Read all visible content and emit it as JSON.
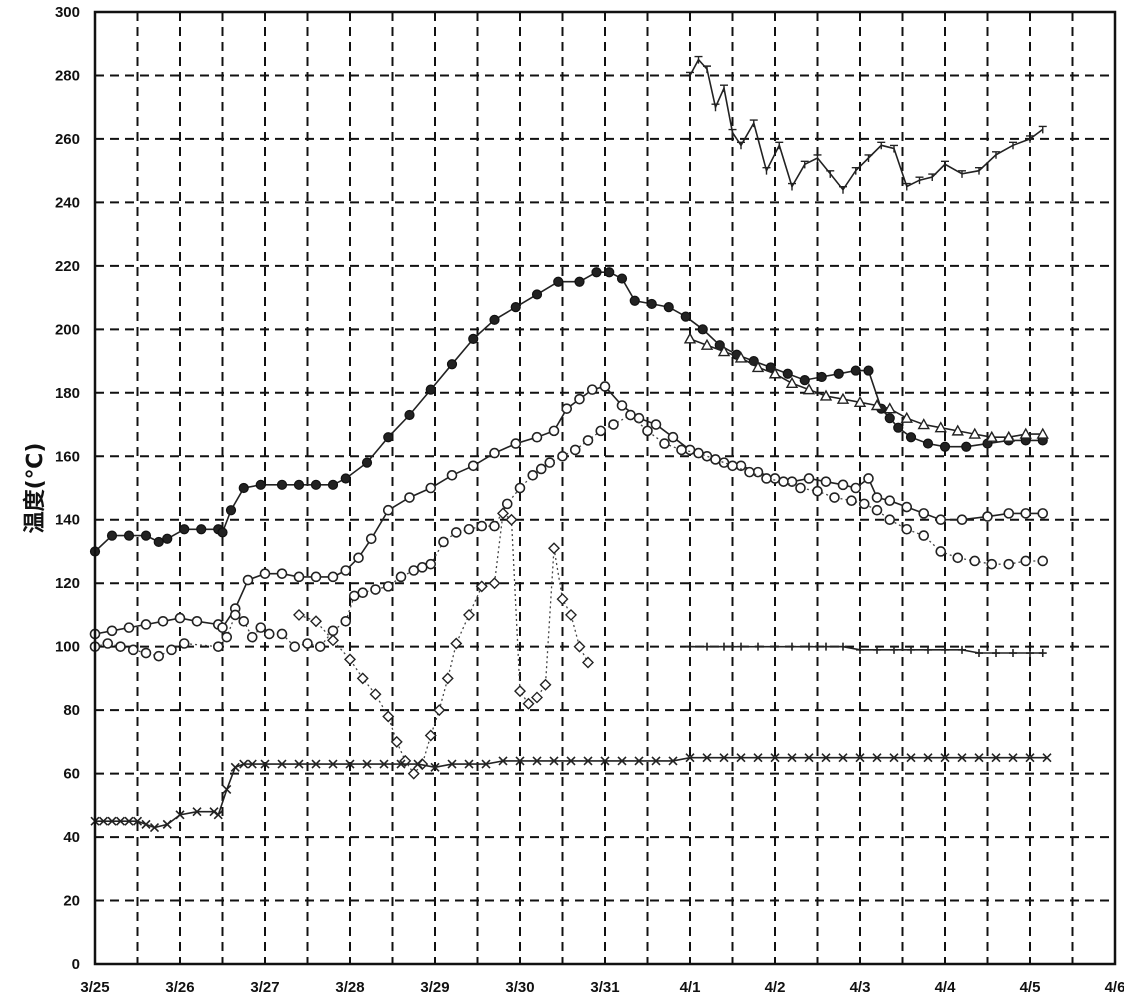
{
  "chart_data": {
    "type": "line",
    "title": "",
    "xlabel": "",
    "ylabel": "温度(℃)",
    "ylim": [
      0,
      300
    ],
    "yticks": [
      "0",
      "20",
      "40",
      "60",
      "80",
      "100",
      "120",
      "140",
      "160",
      "180",
      "200",
      "220",
      "240",
      "260",
      "280",
      "300"
    ],
    "xticks": [
      "3/25",
      "3/26",
      "3/27",
      "3/28",
      "3/29",
      "3/30",
      "3/31",
      "4/1",
      "4/2",
      "4/3",
      "4/4",
      "4/5",
      "4/6"
    ],
    "grid": true,
    "series": [
      {
        "marker": "filled-circle",
        "style": "solid",
        "x": [
          0,
          0.2,
          0.4,
          0.6,
          0.75,
          0.85,
          1.05,
          1.25,
          1.45,
          1.5,
          1.6,
          1.75,
          1.95,
          2.2,
          2.4,
          2.6,
          2.8,
          2.95,
          3.2,
          3.45,
          3.7,
          3.95,
          4.2,
          4.45,
          4.7,
          4.95,
          5.2,
          5.45,
          5.7,
          5.9,
          6.05,
          6.2,
          6.35,
          6.55,
          6.75,
          6.95,
          7.15,
          7.35,
          7.55,
          7.75,
          7.95,
          8.15,
          8.35,
          8.55,
          8.75,
          8.95,
          9.1,
          9.25,
          9.35,
          9.45,
          9.6,
          9.8,
          10,
          10.25,
          10.5,
          10.75,
          10.95,
          11.15
        ],
        "y": [
          130,
          135,
          135,
          135,
          133,
          134,
          137,
          137,
          137,
          136,
          143,
          150,
          151,
          151,
          151,
          151,
          151,
          153,
          158,
          166,
          173,
          181,
          189,
          197,
          203,
          207,
          211,
          215,
          215,
          218,
          218,
          216,
          209,
          208,
          207,
          204,
          200,
          195,
          192,
          190,
          188,
          186,
          184,
          185,
          186,
          187,
          187,
          175,
          172,
          169,
          166,
          164,
          163,
          163,
          164,
          165,
          165,
          165
        ]
      },
      {
        "marker": "circle",
        "style": "solid",
        "x": [
          0,
          0.2,
          0.4,
          0.6,
          0.8,
          1.0,
          1.2,
          1.45,
          1.5,
          1.65,
          1.8,
          2.0,
          2.2,
          2.4,
          2.6,
          2.8,
          2.95,
          3.1,
          3.25,
          3.45,
          3.7,
          3.95,
          4.2,
          4.45,
          4.7,
          4.95,
          5.2,
          5.4,
          5.55,
          5.7,
          5.85,
          6.0,
          6.2,
          6.4,
          6.6,
          6.8,
          7.0,
          7.2,
          7.4,
          7.6,
          7.8,
          8.0,
          8.2,
          8.4,
          8.6,
          8.8,
          8.95,
          9.1,
          9.2,
          9.35,
          9.55,
          9.75,
          9.95,
          10.2,
          10.5,
          10.75,
          10.95,
          11.15
        ],
        "y": [
          104,
          105,
          106,
          107,
          108,
          109,
          108,
          107,
          106,
          112,
          121,
          123,
          123,
          122,
          122,
          122,
          124,
          128,
          134,
          143,
          147,
          150,
          154,
          157,
          161,
          164,
          166,
          168,
          175,
          178,
          181,
          182,
          176,
          172,
          170,
          166,
          162,
          160,
          158,
          157,
          155,
          153,
          152,
          153,
          152,
          151,
          150,
          153,
          147,
          146,
          144,
          142,
          140,
          140,
          141,
          142,
          142,
          142
        ]
      },
      {
        "marker": "circle",
        "style": "dotted",
        "x": [
          0,
          0.15,
          0.3,
          0.45,
          0.6,
          0.75,
          0.9,
          1.05,
          1.45,
          1.55,
          1.65,
          1.75,
          1.85,
          1.95,
          2.05,
          2.2,
          2.35,
          2.5,
          2.65,
          2.8,
          2.95,
          3.05,
          3.15,
          3.3,
          3.45,
          3.6,
          3.75,
          3.85,
          3.95,
          4.1,
          4.25,
          4.4,
          4.55,
          4.7,
          4.85,
          5.0,
          5.15,
          5.25,
          5.35,
          5.5,
          5.65,
          5.8,
          5.95,
          6.1,
          6.3,
          6.5,
          6.7,
          6.9,
          7.1,
          7.3,
          7.5,
          7.7,
          7.9,
          8.1,
          8.3,
          8.5,
          8.7,
          8.9,
          9.05,
          9.2,
          9.35,
          9.55,
          9.75,
          9.95,
          10.15,
          10.35,
          10.55,
          10.75,
          10.95,
          11.15
        ],
        "y": [
          100,
          101,
          100,
          99,
          98,
          97,
          99,
          101,
          100,
          103,
          110,
          108,
          103,
          106,
          104,
          104,
          100,
          101,
          100,
          105,
          108,
          116,
          117,
          118,
          119,
          122,
          124,
          125,
          126,
          133,
          136,
          137,
          138,
          138,
          145,
          150,
          154,
          156,
          158,
          160,
          162,
          165,
          168,
          170,
          173,
          168,
          164,
          162,
          161,
          159,
          157,
          155,
          153,
          152,
          150,
          149,
          147,
          146,
          145,
          143,
          140,
          137,
          135,
          130,
          128,
          127,
          126,
          126,
          127,
          127
        ]
      },
      {
        "marker": "triangle",
        "style": "solid",
        "x": [
          7.0,
          7.2,
          7.4,
          7.6,
          7.8,
          8.0,
          8.2,
          8.4,
          8.6,
          8.8,
          9.0,
          9.2,
          9.35,
          9.55,
          9.75,
          9.95,
          10.15,
          10.35,
          10.55,
          10.75,
          10.95,
          11.15
        ],
        "y": [
          197,
          195,
          193,
          191,
          188,
          186,
          183,
          181,
          179,
          178,
          177,
          176,
          175,
          172,
          170,
          169,
          168,
          167,
          166,
          166,
          167,
          167
        ]
      },
      {
        "marker": "diamond",
        "style": "dotted",
        "x": [
          2.4,
          2.6,
          2.8,
          3.0,
          3.15,
          3.3,
          3.45,
          3.55,
          3.65,
          3.75,
          3.85,
          3.95,
          4.05,
          4.15,
          4.25,
          4.4,
          4.55,
          4.7,
          4.8,
          4.9,
          5.0,
          5.1,
          5.2,
          5.3,
          5.4,
          5.5,
          5.6,
          5.7,
          5.8
        ],
        "y": [
          110,
          108,
          102,
          96,
          90,
          85,
          78,
          70,
          64,
          60,
          63,
          72,
          80,
          90,
          101,
          110,
          119,
          120,
          142,
          140,
          86,
          82,
          84,
          88,
          131,
          115,
          110,
          100,
          95
        ]
      },
      {
        "marker": "x",
        "style": "solid",
        "x": [
          0,
          0.1,
          0.2,
          0.3,
          0.4,
          0.5,
          0.6,
          0.7,
          0.85,
          1.0,
          1.2,
          1.4,
          1.45,
          1.55,
          1.65,
          1.75,
          1.85,
          2.0,
          2.2,
          2.4,
          2.6,
          2.8,
          3.0,
          3.2,
          3.4,
          3.6,
          3.8,
          4.0,
          4.2,
          4.4,
          4.6,
          4.8,
          5.0,
          5.2,
          5.4,
          5.6,
          5.8,
          6.0,
          6.2,
          6.4,
          6.6,
          6.8,
          7.0,
          7.2,
          7.4,
          7.6,
          7.8,
          8.0,
          8.2,
          8.4,
          8.6,
          8.8,
          9.0,
          9.2,
          9.4,
          9.6,
          9.8,
          10.0,
          10.2,
          10.4,
          10.6,
          10.8,
          11.0,
          11.2
        ],
        "y": [
          45,
          45,
          45,
          45,
          45,
          45,
          44,
          43,
          44,
          47,
          48,
          48,
          47,
          55,
          62,
          63,
          63,
          63,
          63,
          63,
          63,
          63,
          63,
          63,
          63,
          63,
          63,
          62,
          63,
          63,
          63,
          64,
          64,
          64,
          64,
          64,
          64,
          64,
          64,
          64,
          64,
          64,
          65,
          65,
          65,
          65,
          65,
          65,
          65,
          65,
          65,
          65,
          65,
          65,
          65,
          65,
          65,
          65,
          65,
          65,
          65,
          65,
          65,
          65
        ]
      },
      {
        "marker": "plus",
        "style": "solid",
        "x": [
          7.0,
          7.2,
          7.4,
          7.6,
          7.8,
          8.0,
          8.2,
          8.4,
          8.6,
          8.8,
          9.0,
          9.2,
          9.4,
          9.6,
          9.8,
          10.0,
          10.2,
          10.4,
          10.6,
          10.8,
          11.0,
          11.15
        ],
        "y": [
          100,
          100,
          100,
          100,
          100,
          100,
          100,
          100,
          100,
          100,
          99,
          99,
          99,
          99,
          99,
          99,
          99,
          98,
          98,
          98,
          98,
          98
        ]
      },
      {
        "marker": "zigzag",
        "style": "solid",
        "x": [
          7.0,
          7.1,
          7.2,
          7.3,
          7.4,
          7.5,
          7.6,
          7.75,
          7.9,
          8.05,
          8.2,
          8.35,
          8.5,
          8.65,
          8.8,
          8.95,
          9.1,
          9.25,
          9.4,
          9.55,
          9.7,
          9.85,
          10.0,
          10.2,
          10.4,
          10.6,
          10.8,
          11.0,
          11.15
        ],
        "y": [
          280,
          285,
          282,
          270,
          276,
          262,
          258,
          265,
          250,
          258,
          245,
          252,
          254,
          249,
          244,
          250,
          254,
          258,
          257,
          245,
          247,
          248,
          252,
          249,
          250,
          255,
          258,
          260,
          263
        ]
      }
    ]
  }
}
